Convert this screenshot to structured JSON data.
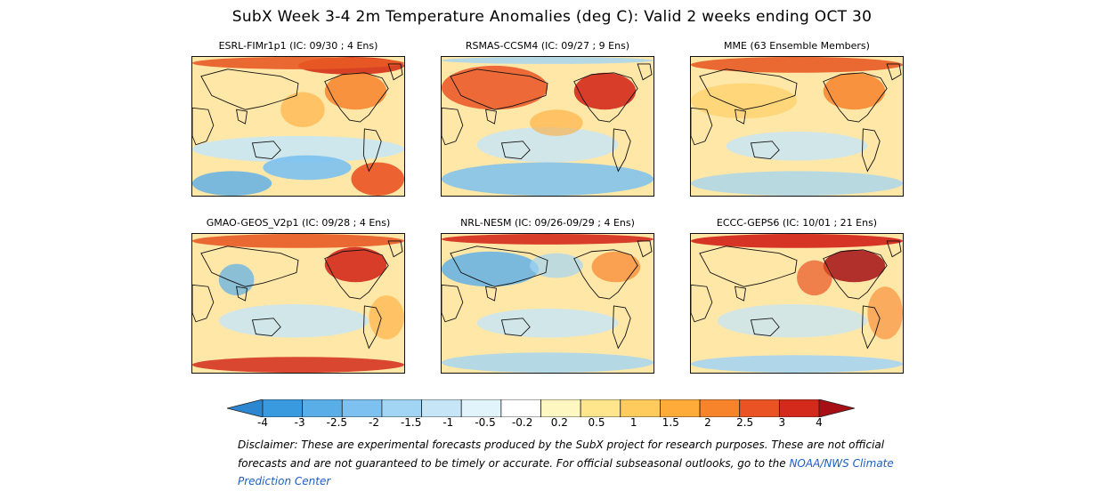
{
  "title": "SubX Week 3-4 2m Temperature Anomalies (deg C): Valid 2 weeks ending OCT 30",
  "panels": [
    {
      "label": "ESRL-FIMr1p1 (IC: 09/30 ; 4 Ens)"
    },
    {
      "label": "RSMAS-CCSM4 (IC: 09/27 ; 9 Ens)"
    },
    {
      "label": "MME (63 Ensemble Members)"
    },
    {
      "label": "GMAO-GEOS_V2p1 (IC: 09/28 ; 4 Ens)"
    },
    {
      "label": "NRL-NESM (IC: 09/26-09/29 ; 4 Ens)"
    },
    {
      "label": "ECCC-GEPS6 (IC: 10/01 ; 21 Ens)"
    }
  ],
  "colorbar": {
    "ticks": [
      "-4",
      "-3",
      "-2.5",
      "-2",
      "-1.5",
      "-1",
      "-0.5",
      "-0.2",
      "0.2",
      "0.5",
      "1",
      "1.5",
      "2",
      "2.5",
      "3",
      "4"
    ],
    "colors": [
      "#2c87d0",
      "#3a9ae0",
      "#5aaee8",
      "#7cc1ef",
      "#a2d4f4",
      "#c6e6f8",
      "#e2f4fb",
      "#ffffff",
      "#fff7c2",
      "#ffe58c",
      "#ffcb5c",
      "#ffab3a",
      "#f7832b",
      "#ea5424",
      "#d42a1c",
      "#a50f15"
    ]
  },
  "disclaimer": {
    "text": "Disclaimer: These are experimental forecasts produced by the SubX project for research purposes. These are not official forecasts and are not guaranteed to be timely or accurate. For official subseasonal outlooks, go to the ",
    "link": "NOAA/NWS Climate Prediction Center"
  }
}
